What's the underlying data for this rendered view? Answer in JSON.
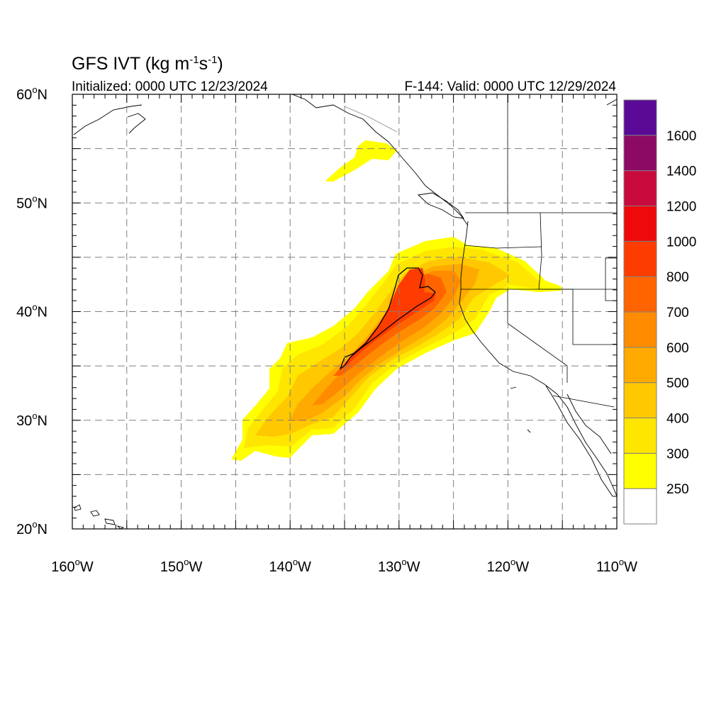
{
  "header": {
    "title_main": "GFS IVT (kg m",
    "title_sup1": "-1",
    "title_mid": "s",
    "title_sup2": "-1",
    "title_end": ")",
    "initialized": "Initialized: 0000 UTC 12/23/2024",
    "valid": "F-144: Valid: 0000 UTC 12/29/2024"
  },
  "axes": {
    "lon_range": [
      -160,
      -110
    ],
    "lat_range": [
      20,
      60
    ],
    "lon_labels": [
      {
        "deg": "160",
        "hem": "W"
      },
      {
        "deg": "150",
        "hem": "W"
      },
      {
        "deg": "140",
        "hem": "W"
      },
      {
        "deg": "130",
        "hem": "W"
      },
      {
        "deg": "120",
        "hem": "W"
      },
      {
        "deg": "110",
        "hem": "W"
      }
    ],
    "lat_labels": [
      {
        "deg": "60",
        "hem": "N"
      },
      {
        "deg": "50",
        "hem": "N"
      },
      {
        "deg": "40",
        "hem": "N"
      },
      {
        "deg": "30",
        "hem": "N"
      },
      {
        "deg": "20",
        "hem": "N"
      }
    ],
    "grid_lons": [
      -155,
      -150,
      -145,
      -140,
      -135,
      -130,
      -125,
      -120,
      -115
    ],
    "grid_lats": [
      25,
      30,
      35,
      40,
      45,
      50,
      55
    ]
  },
  "colorbar": {
    "levels": [
      {
        "value": "250",
        "color": "#ffff00"
      },
      {
        "value": "300",
        "color": "#ffe600"
      },
      {
        "value": "400",
        "color": "#ffc800"
      },
      {
        "value": "500",
        "color": "#ffaa00"
      },
      {
        "value": "600",
        "color": "#ff8c00"
      },
      {
        "value": "700",
        "color": "#ff6400"
      },
      {
        "value": "800",
        "color": "#ff3c00"
      },
      {
        "value": "1000",
        "color": "#ee0a0a"
      },
      {
        "value": "1200",
        "color": "#c80a3c"
      },
      {
        "value": "1400",
        "color": "#8c0a64"
      },
      {
        "value": "1600",
        "color": "#5a0a96"
      }
    ],
    "below_color": "#ffffff"
  }
}
